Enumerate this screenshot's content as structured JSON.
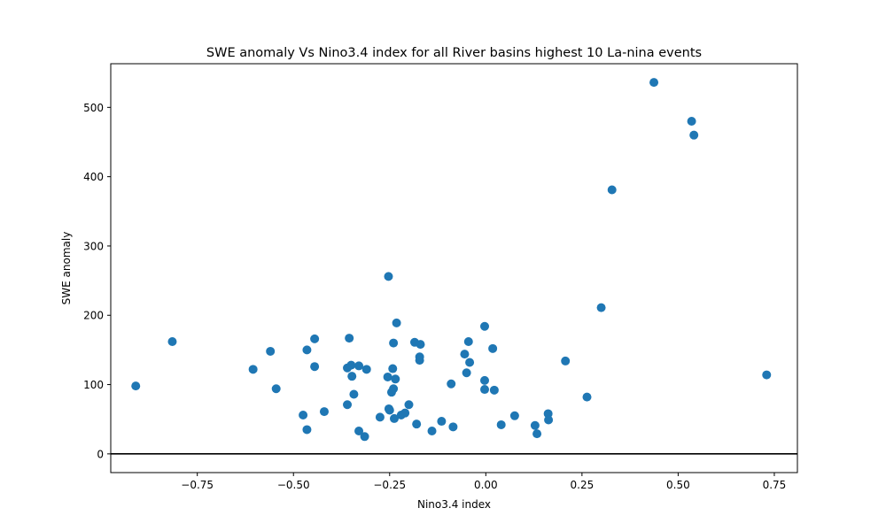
{
  "chart_data": {
    "type": "scatter",
    "title": "SWE anomaly Vs Nino3.4 index for all River basins highest 10 La-nina events",
    "xlabel": "Nino3.4 index",
    "ylabel": "SWE anomaly",
    "xlim": [
      -0.975,
      0.81
    ],
    "ylim": [
      -27,
      563
    ],
    "xticks": [
      {
        "value": -0.75,
        "label": "−0.75"
      },
      {
        "value": -0.5,
        "label": "−0.50"
      },
      {
        "value": -0.25,
        "label": "−0.25"
      },
      {
        "value": 0.0,
        "label": "0.00"
      },
      {
        "value": 0.25,
        "label": "0.25"
      },
      {
        "value": 0.5,
        "label": "0.50"
      },
      {
        "value": 0.75,
        "label": "0.75"
      }
    ],
    "yticks": [
      {
        "value": 0,
        "label": "0"
      },
      {
        "value": 100,
        "label": "100"
      },
      {
        "value": 200,
        "label": "200"
      },
      {
        "value": 300,
        "label": "300"
      },
      {
        "value": 400,
        "label": "400"
      },
      {
        "value": 500,
        "label": "500"
      }
    ],
    "hline": 0,
    "grid": false,
    "marker_color": "#1f77b4",
    "points": [
      [
        -0.91,
        98
      ],
      [
        -0.815,
        162
      ],
      [
        -0.605,
        122
      ],
      [
        -0.56,
        148
      ],
      [
        -0.545,
        94
      ],
      [
        -0.475,
        56
      ],
      [
        -0.465,
        150
      ],
      [
        -0.465,
        35
      ],
      [
        -0.445,
        166
      ],
      [
        -0.445,
        126
      ],
      [
        -0.42,
        61
      ],
      [
        -0.36,
        124
      ],
      [
        -0.36,
        71
      ],
      [
        -0.355,
        167
      ],
      [
        -0.35,
        128
      ],
      [
        -0.348,
        112
      ],
      [
        -0.343,
        86
      ],
      [
        -0.33,
        127
      ],
      [
        -0.33,
        33
      ],
      [
        -0.315,
        25
      ],
      [
        -0.31,
        122
      ],
      [
        -0.275,
        53
      ],
      [
        -0.255,
        111
      ],
      [
        -0.253,
        256
      ],
      [
        -0.252,
        65
      ],
      [
        -0.25,
        63
      ],
      [
        -0.245,
        89
      ],
      [
        -0.242,
        123
      ],
      [
        -0.24,
        160
      ],
      [
        -0.24,
        94
      ],
      [
        -0.238,
        51
      ],
      [
        -0.235,
        108
      ],
      [
        -0.232,
        189
      ],
      [
        -0.22,
        56
      ],
      [
        -0.21,
        59
      ],
      [
        -0.2,
        71
      ],
      [
        -0.185,
        161
      ],
      [
        -0.18,
        43
      ],
      [
        -0.172,
        140
      ],
      [
        -0.172,
        135
      ],
      [
        -0.17,
        158
      ],
      [
        -0.14,
        33
      ],
      [
        -0.115,
        47
      ],
      [
        -0.09,
        101
      ],
      [
        -0.085,
        39
      ],
      [
        -0.055,
        144
      ],
      [
        -0.05,
        117
      ],
      [
        -0.045,
        162
      ],
      [
        -0.042,
        132
      ],
      [
        -0.003,
        184
      ],
      [
        -0.003,
        106
      ],
      [
        -0.003,
        93
      ],
      [
        0.018,
        152
      ],
      [
        0.022,
        92
      ],
      [
        0.04,
        42
      ],
      [
        0.075,
        55
      ],
      [
        0.128,
        41
      ],
      [
        0.133,
        29
      ],
      [
        0.162,
        58
      ],
      [
        0.163,
        49
      ],
      [
        0.207,
        134
      ],
      [
        0.263,
        82
      ],
      [
        0.3,
        211
      ],
      [
        0.328,
        381
      ],
      [
        0.437,
        536
      ],
      [
        0.535,
        480
      ],
      [
        0.541,
        460
      ],
      [
        0.73,
        114
      ]
    ]
  }
}
